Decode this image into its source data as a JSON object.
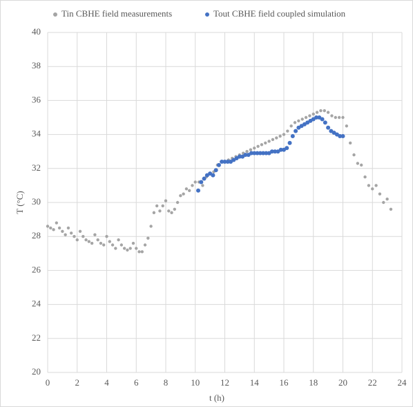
{
  "chart_data": {
    "type": "scatter",
    "xlabel": "t (h)",
    "ylabel": "T (°C)",
    "xlim": [
      0,
      24
    ],
    "xticks": [
      0,
      2,
      4,
      6,
      8,
      10,
      12,
      14,
      16,
      18,
      20,
      22,
      24
    ],
    "ylim": [
      20,
      40
    ],
    "yticks": [
      20,
      22,
      24,
      26,
      28,
      30,
      32,
      34,
      36,
      38,
      40
    ],
    "grid": true,
    "legend": "top",
    "series": [
      {
        "name": "Tin CBHE field measurements",
        "color": "#a5a5a5",
        "x": [
          0,
          0.2,
          0.4,
          0.6,
          0.8,
          1.0,
          1.2,
          1.4,
          1.6,
          1.8,
          2.0,
          2.2,
          2.4,
          2.6,
          2.8,
          3.0,
          3.2,
          3.4,
          3.6,
          3.8,
          4.0,
          4.2,
          4.4,
          4.6,
          4.8,
          5.0,
          5.2,
          5.4,
          5.6,
          5.8,
          6.0,
          6.2,
          6.4,
          6.6,
          6.8,
          7.0,
          7.2,
          7.4,
          7.6,
          7.8,
          8.0,
          8.2,
          8.4,
          8.6,
          8.8,
          9.0,
          9.2,
          9.4,
          9.6,
          9.8,
          10.0,
          10.25,
          10.5,
          10.75,
          11.0,
          11.25,
          11.5,
          11.75,
          12.0,
          12.25,
          12.5,
          12.75,
          13.0,
          13.25,
          13.5,
          13.75,
          14.0,
          14.25,
          14.5,
          14.75,
          15.0,
          15.25,
          15.5,
          15.75,
          16.0,
          16.25,
          16.5,
          16.75,
          17.0,
          17.25,
          17.5,
          17.75,
          18.0,
          18.25,
          18.5,
          18.75,
          19.0,
          19.25,
          19.5,
          19.75,
          20.0,
          20.25,
          20.5,
          20.75,
          21.0,
          21.25,
          21.5,
          21.75,
          22.0,
          22.25,
          22.5,
          22.75,
          23.0,
          23.25
        ],
        "values": [
          28.6,
          28.5,
          28.4,
          28.8,
          28.5,
          28.3,
          28.1,
          28.5,
          28.2,
          28.0,
          27.8,
          28.3,
          28.0,
          27.8,
          27.7,
          27.6,
          28.1,
          27.8,
          27.6,
          27.5,
          28.0,
          27.7,
          27.5,
          27.3,
          27.8,
          27.5,
          27.3,
          27.2,
          27.3,
          27.6,
          27.3,
          27.1,
          27.1,
          27.5,
          27.9,
          28.6,
          29.4,
          29.8,
          29.5,
          29.8,
          30.1,
          29.5,
          29.4,
          29.6,
          30.0,
          30.4,
          30.5,
          30.8,
          30.7,
          31.0,
          31.2,
          31.2,
          31.0,
          31.5,
          31.7,
          31.8,
          32.2,
          32.4,
          32.4,
          32.5,
          32.6,
          32.7,
          32.8,
          32.9,
          33.0,
          33.1,
          33.2,
          33.3,
          33.4,
          33.5,
          33.6,
          33.7,
          33.8,
          33.9,
          34.0,
          34.2,
          34.5,
          34.7,
          34.8,
          34.9,
          35.0,
          35.1,
          35.2,
          35.3,
          35.4,
          35.4,
          35.3,
          35.1,
          35.0,
          35.0,
          35.0,
          34.5,
          33.5,
          32.8,
          32.3,
          32.2,
          31.5,
          31.0,
          30.8,
          31.0,
          30.5,
          30.0,
          30.2,
          29.6
        ]
      },
      {
        "name": "Tout CBHE field coupled simulation",
        "color": "#4472c4",
        "x": [
          10.2,
          10.4,
          10.6,
          10.8,
          11.0,
          11.2,
          11.4,
          11.6,
          11.8,
          12.0,
          12.2,
          12.4,
          12.6,
          12.8,
          13.0,
          13.2,
          13.4,
          13.6,
          13.8,
          14.0,
          14.2,
          14.4,
          14.6,
          14.8,
          15.0,
          15.2,
          15.4,
          15.6,
          15.8,
          16.0,
          16.2,
          16.4,
          16.6,
          16.8,
          17.0,
          17.2,
          17.4,
          17.6,
          17.8,
          18.0,
          18.2,
          18.4,
          18.6,
          18.8,
          19.0,
          19.2,
          19.4,
          19.6,
          19.8,
          20.0
        ],
        "values": [
          30.7,
          31.2,
          31.4,
          31.6,
          31.7,
          31.6,
          31.9,
          32.2,
          32.4,
          32.4,
          32.4,
          32.4,
          32.5,
          32.6,
          32.7,
          32.7,
          32.8,
          32.8,
          32.9,
          32.9,
          32.9,
          32.9,
          32.9,
          32.9,
          32.9,
          33.0,
          33.0,
          33.0,
          33.1,
          33.1,
          33.2,
          33.5,
          33.9,
          34.2,
          34.4,
          34.5,
          34.6,
          34.7,
          34.8,
          34.9,
          35.0,
          35.0,
          34.9,
          34.7,
          34.4,
          34.2,
          34.1,
          34.0,
          33.9,
          33.9
        ]
      }
    ]
  }
}
